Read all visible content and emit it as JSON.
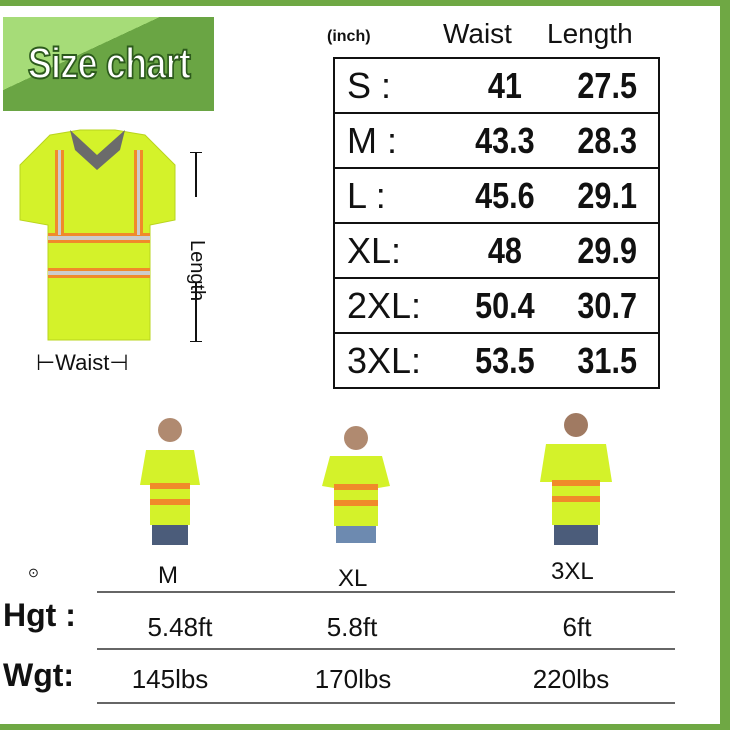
{
  "title": "Size chart",
  "unit": "(inch)",
  "columns": [
    "Waist",
    "Length"
  ],
  "rows": [
    {
      "size": "S :",
      "waist": "41",
      "length": "27.5"
    },
    {
      "size": "M :",
      "waist": "43.3",
      "length": "28.3"
    },
    {
      "size": "L :",
      "waist": "45.6",
      "length": "29.1"
    },
    {
      "size": "XL:",
      "waist": "48",
      "length": "29.9"
    },
    {
      "size": "2XL:",
      "waist": "50.4",
      "length": "30.7"
    },
    {
      "size": "3XL:",
      "waist": "53.5",
      "length": "31.5"
    }
  ],
  "diagram": {
    "length_label": "Length",
    "waist_label": "Waist"
  },
  "models": {
    "sizes": [
      "M",
      "XL",
      "3XL"
    ],
    "height_label": "Hgt :",
    "weight_label": "Wgt:",
    "heights": [
      "5.48ft",
      "5.8ft",
      "6ft"
    ],
    "weights": [
      "145lbs",
      "170lbs",
      "220lbs"
    ]
  },
  "colors": {
    "frame": "#6fa844",
    "shirt": "#d4f22a",
    "reflective": "#f08a2a"
  }
}
